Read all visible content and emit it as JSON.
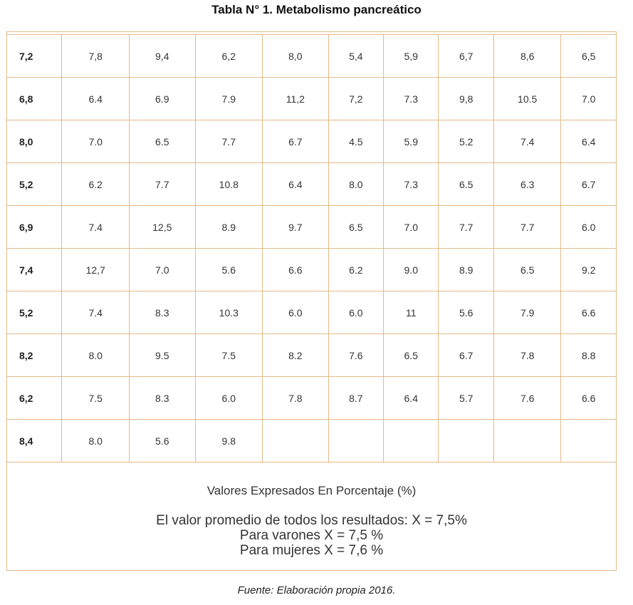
{
  "title": "Tabla N° 1. Metabolismo pancreático",
  "rows": [
    [
      "7,2",
      "7,8",
      "9,4",
      "6,2",
      "8,0",
      "5,4",
      "5,9",
      "6,7",
      "8,6",
      "6,5"
    ],
    [
      "6,8",
      "6.4",
      "6.9",
      "7.9",
      "11,2",
      "7,2",
      "7.3",
      "9,8",
      "10.5",
      "7.0"
    ],
    [
      "8,0",
      "7.0",
      "6.5",
      "7.7",
      "6.7",
      "4.5",
      "5.9",
      "5.2",
      "7.4",
      "6.4"
    ],
    [
      "5,2",
      "6.2",
      "7.7",
      "10.8",
      "6.4",
      "8.0",
      "7.3",
      "6.5",
      "6.3",
      "6.7"
    ],
    [
      "6,9",
      "7.4",
      "12,5",
      "8.9",
      "9.7",
      "6.5",
      "7.0",
      "7.7",
      "7.7",
      "6.0"
    ],
    [
      "7,4",
      "12,7",
      "7.0",
      "5.6",
      "6.6",
      "6.2",
      "9.0",
      "8.9",
      "6.5",
      "9.2"
    ],
    [
      "5,2",
      "7.4",
      "8.3",
      "10.3",
      "6.0",
      "6.0",
      "11",
      "5.6",
      "7.9",
      "6.6"
    ],
    [
      "8,2",
      "8.0",
      "9.5",
      "7.5",
      "8.2",
      "7.6",
      "6.5",
      "6.7",
      "7.8",
      "8.8"
    ],
    [
      "6,2",
      "7.5",
      "8.3",
      "6.0",
      "7.8",
      "8.7",
      "6.4",
      "5.7",
      "7.6",
      "6.6"
    ],
    [
      "8,4",
      "8.0",
      "5.6",
      "9.8",
      "",
      "",
      "",
      "",
      "",
      ""
    ]
  ],
  "notes": {
    "units": "Valores Expresados En Porcentaje (%)",
    "average_all": "El valor promedio de todos los resultados: X = 7,5%",
    "average_men": "Para varones X = 7,5 %",
    "average_women": "Para mujeres X =  7,6 %"
  },
  "source": "Fuente: Elaboración propia 2016."
}
